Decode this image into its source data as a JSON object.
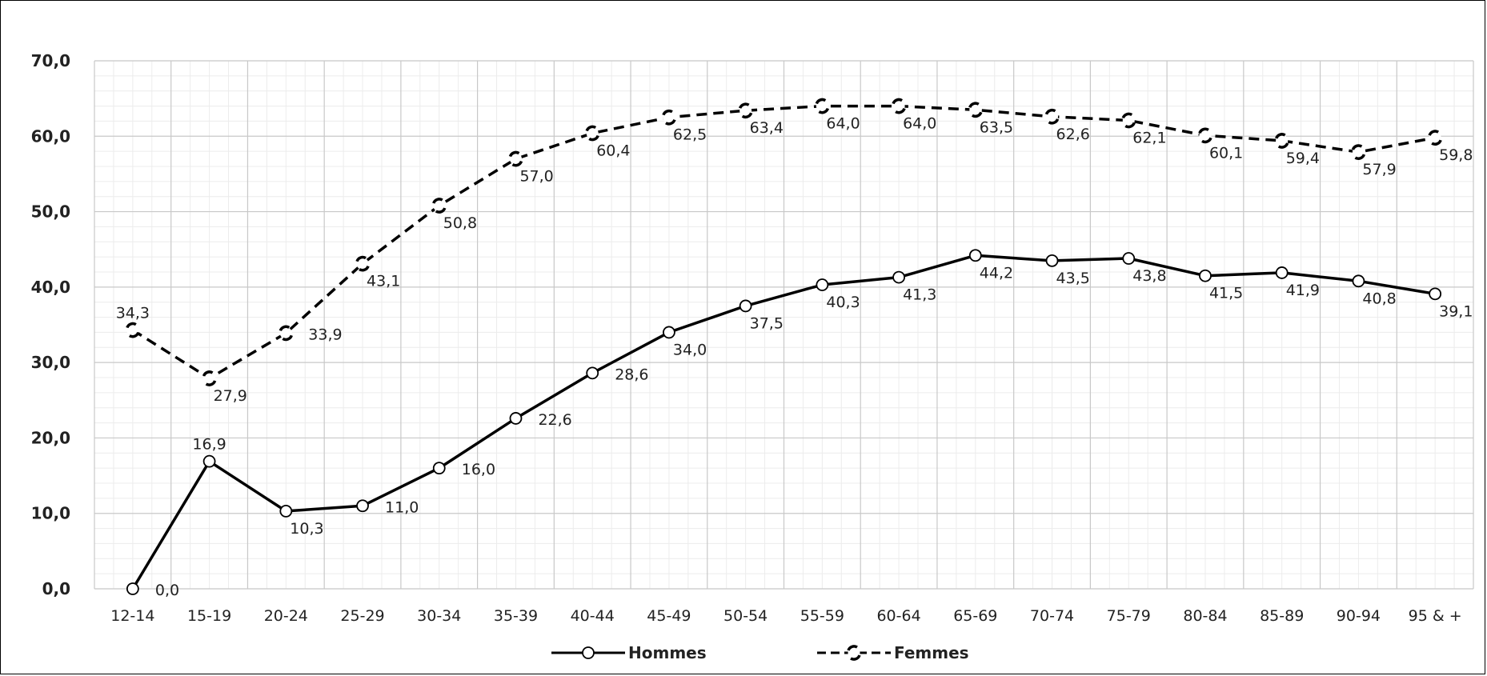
{
  "chart_data": {
    "type": "line",
    "categories": [
      "12-14",
      "15-19",
      "20-24",
      "25-29",
      "30-34",
      "35-39",
      "40-44",
      "45-49",
      "50-54",
      "55-59",
      "60-64",
      "65-69",
      "70-74",
      "75-79",
      "80-84",
      "85-89",
      "90-94",
      "95 & +"
    ],
    "ylim": [
      0,
      70
    ],
    "yticks": [
      0,
      10,
      20,
      30,
      40,
      50,
      60,
      70
    ],
    "ytick_labels": [
      "0,0",
      "10,0",
      "20,0",
      "30,0",
      "40,0",
      "50,0",
      "60,0",
      "70,0"
    ],
    "grid": true,
    "legend_position": "bottom",
    "series": [
      {
        "name": "Hommes",
        "style": "solid",
        "color": "#000000",
        "values": [
          0.0,
          16.9,
          10.3,
          11.0,
          16.0,
          22.6,
          28.6,
          34.0,
          37.5,
          40.3,
          41.3,
          44.2,
          43.5,
          43.8,
          41.5,
          41.9,
          40.8,
          39.1
        ],
        "labels": [
          "0,0",
          "16,9",
          "10,3",
          "11,0",
          "16,0",
          "22,6",
          "28,6",
          "34,0",
          "37,5",
          "40,3",
          "41,3",
          "44,2",
          "43,5",
          "43,8",
          "41,5",
          "41,9",
          "40,8",
          "39,1"
        ]
      },
      {
        "name": "Femmes",
        "style": "dashed",
        "color": "#000000",
        "values": [
          34.3,
          27.9,
          33.9,
          43.1,
          50.8,
          57.0,
          60.4,
          62.5,
          63.4,
          64.0,
          64.0,
          63.5,
          62.6,
          62.1,
          60.1,
          59.4,
          57.9,
          59.8
        ],
        "labels": [
          "34,3",
          "27,9",
          "33,9",
          "43,1",
          "50,8",
          "57,0",
          "60,4",
          "62,5",
          "63,4",
          "64,0",
          "64,0",
          "63,5",
          "62,6",
          "62,1",
          "60,1",
          "59,4",
          "57,9",
          "59,8"
        ]
      }
    ]
  }
}
